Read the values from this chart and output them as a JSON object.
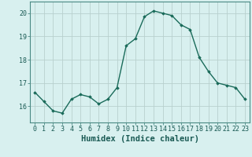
{
  "x": [
    0,
    1,
    2,
    3,
    4,
    5,
    6,
    7,
    8,
    9,
    10,
    11,
    12,
    13,
    14,
    15,
    16,
    17,
    18,
    19,
    20,
    21,
    22,
    23
  ],
  "y": [
    16.6,
    16.2,
    15.8,
    15.7,
    16.3,
    16.5,
    16.4,
    16.1,
    16.3,
    16.8,
    18.6,
    18.9,
    19.85,
    20.1,
    20.0,
    19.9,
    19.5,
    19.3,
    18.1,
    17.5,
    17.0,
    16.9,
    16.8,
    16.3
  ],
  "xlabel": "Humidex (Indice chaleur)",
  "xlim": [
    -0.5,
    23.5
  ],
  "ylim": [
    15.3,
    20.5
  ],
  "yticks": [
    16,
    17,
    18,
    19,
    20
  ],
  "xticks": [
    0,
    1,
    2,
    3,
    4,
    5,
    6,
    7,
    8,
    9,
    10,
    11,
    12,
    13,
    14,
    15,
    16,
    17,
    18,
    19,
    20,
    21,
    22,
    23
  ],
  "line_color": "#1a6b5a",
  "marker": "D",
  "marker_size": 1.8,
  "bg_color": "#d8f0ef",
  "grid_color": "#b8d0ce",
  "xlabel_fontsize": 7.5,
  "tick_fontsize": 6.0,
  "line_width": 1.0,
  "spine_color": "#4a8a84",
  "text_color": "#1a5a54"
}
